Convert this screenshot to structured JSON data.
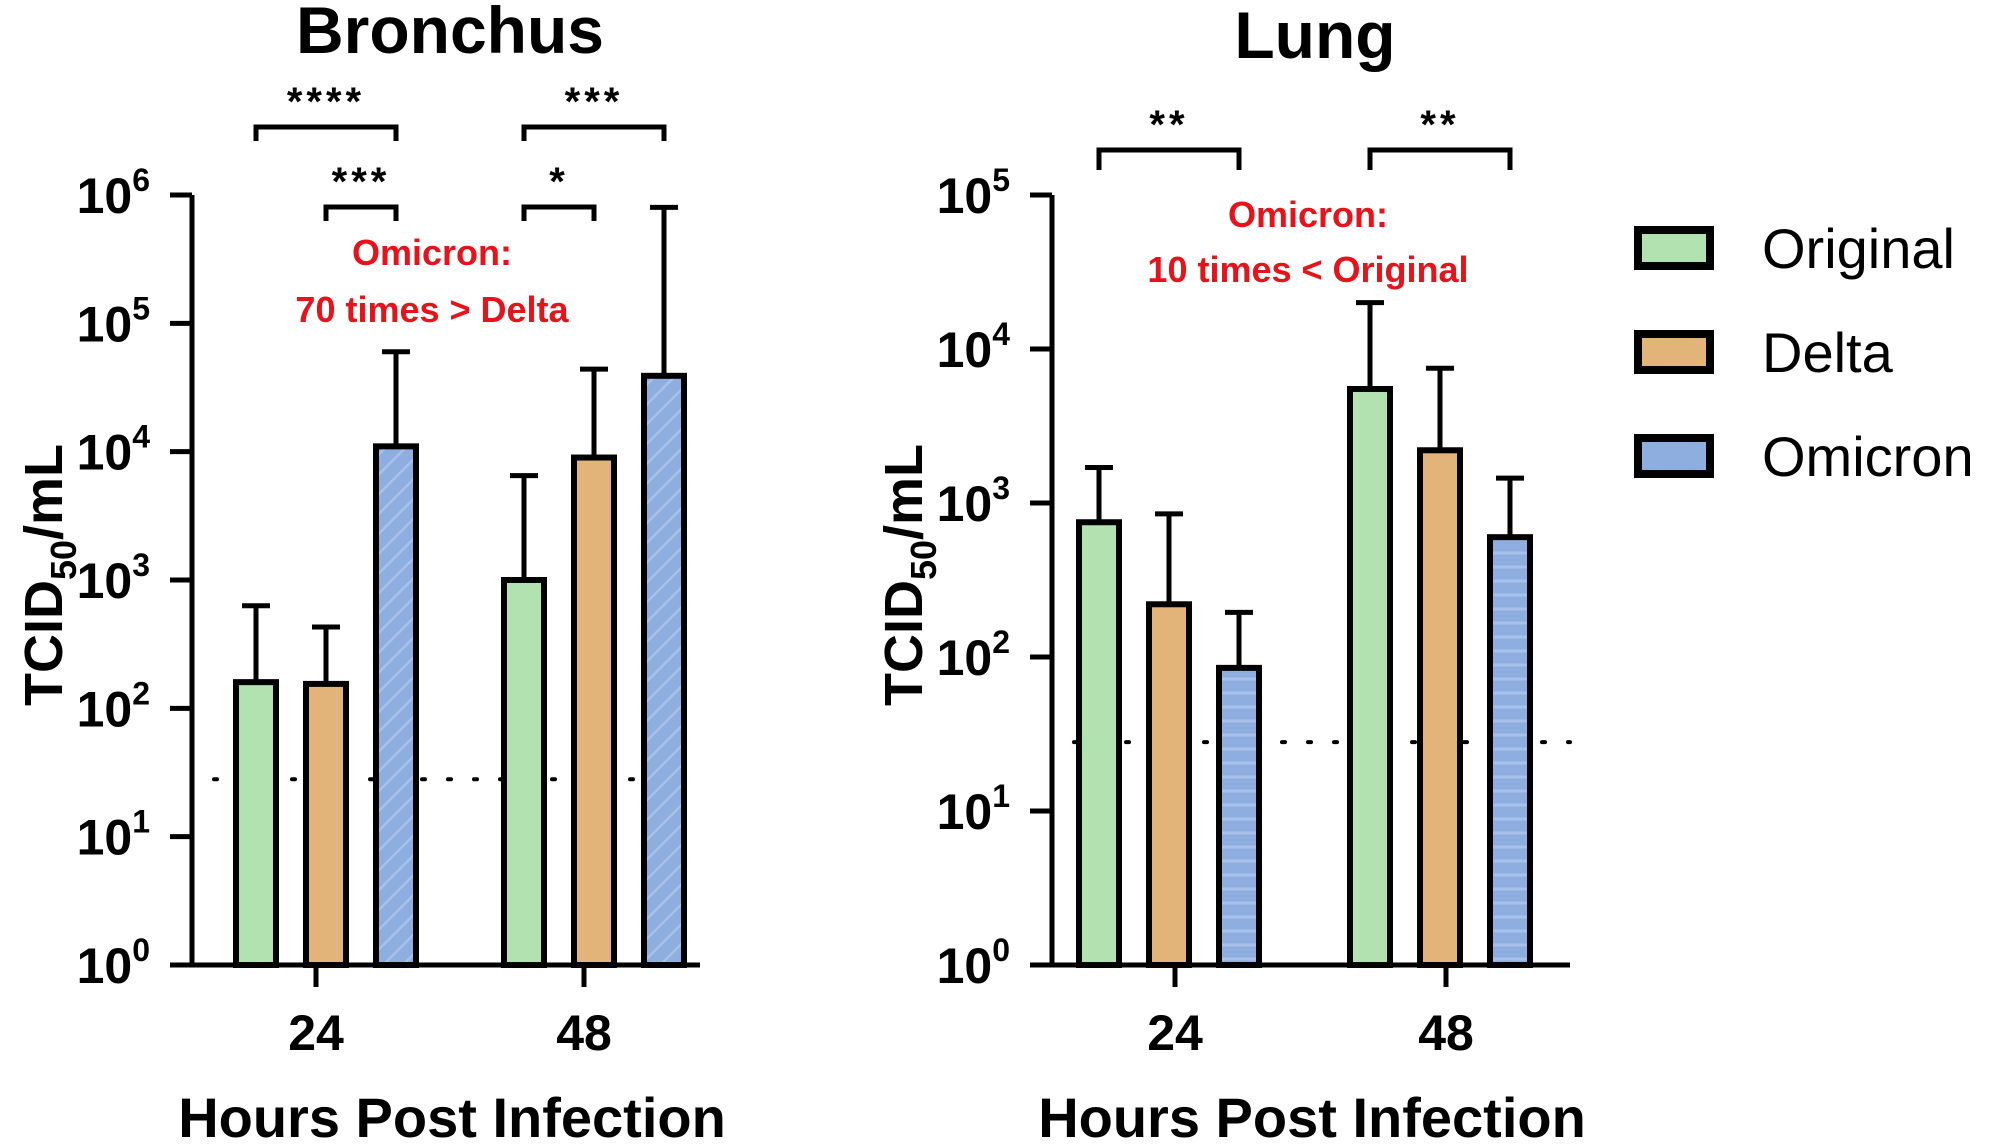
{
  "legend": {
    "placement": "right",
    "items": [
      {
        "label": "Original",
        "color": "#b2e2b0"
      },
      {
        "label": "Delta",
        "color": "#e2b47a"
      },
      {
        "label": "Omicron",
        "color": "#8eaee0"
      }
    ]
  },
  "colors": {
    "axis": "#000000",
    "annotation": "#e8121a",
    "omicron_hatch": "#a8c1ea"
  },
  "chart_data": [
    {
      "type": "bar",
      "title": "Bronchus",
      "ylabel_main": "TCID",
      "ylabel_sub": "50",
      "ylabel_tail": "/mL",
      "xlabel": "Hours Post Infection",
      "yscale": "log",
      "ylim": [
        1,
        1000000
      ],
      "yticks": [
        {
          "base": "10",
          "exp": "0",
          "value": 1
        },
        {
          "base": "10",
          "exp": "1",
          "value": 10
        },
        {
          "base": "10",
          "exp": "2",
          "value": 100
        },
        {
          "base": "10",
          "exp": "3",
          "value": 1000
        },
        {
          "base": "10",
          "exp": "4",
          "value": 10000
        },
        {
          "base": "10",
          "exp": "5",
          "value": 100000
        },
        {
          "base": "10",
          "exp": "6",
          "value": 1000000
        }
      ],
      "categories": [
        "24",
        "48"
      ],
      "series": [
        {
          "name": "Original",
          "values": [
            160,
            1000
          ],
          "error_upper": [
            630,
            6500
          ]
        },
        {
          "name": "Delta",
          "values": [
            155,
            9000
          ],
          "error_upper": [
            430,
            44000
          ]
        },
        {
          "name": "Omicron",
          "values": [
            11000,
            39000
          ],
          "error_upper": [
            60000,
            800000
          ]
        }
      ],
      "detection_limit": 28,
      "significance": [
        {
          "label": "****",
          "group": 0,
          "from": 0,
          "to": 2,
          "level": 0
        },
        {
          "label": "***",
          "group": 0,
          "from": 1,
          "to": 2,
          "level": 1
        },
        {
          "label": "***",
          "group": 1,
          "from": 0,
          "to": 2,
          "level": 0
        },
        {
          "label": "*",
          "group": 1,
          "from": 0,
          "to": 1,
          "level": 1
        }
      ],
      "annotation": {
        "line1": "Omicron:",
        "line2": "70 times > Delta"
      }
    },
    {
      "type": "bar",
      "title": "Lung",
      "ylabel_main": "TCID",
      "ylabel_sub": "50",
      "ylabel_tail": "/mL",
      "xlabel": "Hours Post Infection",
      "yscale": "log",
      "ylim": [
        1,
        100000
      ],
      "yticks": [
        {
          "base": "10",
          "exp": "0",
          "value": 1
        },
        {
          "base": "10",
          "exp": "1",
          "value": 10
        },
        {
          "base": "10",
          "exp": "2",
          "value": 100
        },
        {
          "base": "10",
          "exp": "3",
          "value": 1000
        },
        {
          "base": "10",
          "exp": "4",
          "value": 10000
        },
        {
          "base": "10",
          "exp": "5",
          "value": 100000
        }
      ],
      "categories": [
        "24",
        "48"
      ],
      "series": [
        {
          "name": "Original",
          "values": [
            750,
            5500
          ],
          "error_upper": [
            1700,
            20000
          ]
        },
        {
          "name": "Delta",
          "values": [
            220,
            2200
          ],
          "error_upper": [
            850,
            7500
          ]
        },
        {
          "name": "Omicron",
          "values": [
            85,
            600
          ],
          "error_upper": [
            195,
            1450
          ]
        }
      ],
      "detection_limit": 28,
      "significance": [
        {
          "label": "**",
          "group": 0,
          "from": 0,
          "to": 2,
          "level": 0
        },
        {
          "label": "**",
          "group": 1,
          "from": 0,
          "to": 2,
          "level": 0
        }
      ],
      "annotation": {
        "line1": "Omicron:",
        "line2": "10 times < Original"
      }
    }
  ]
}
